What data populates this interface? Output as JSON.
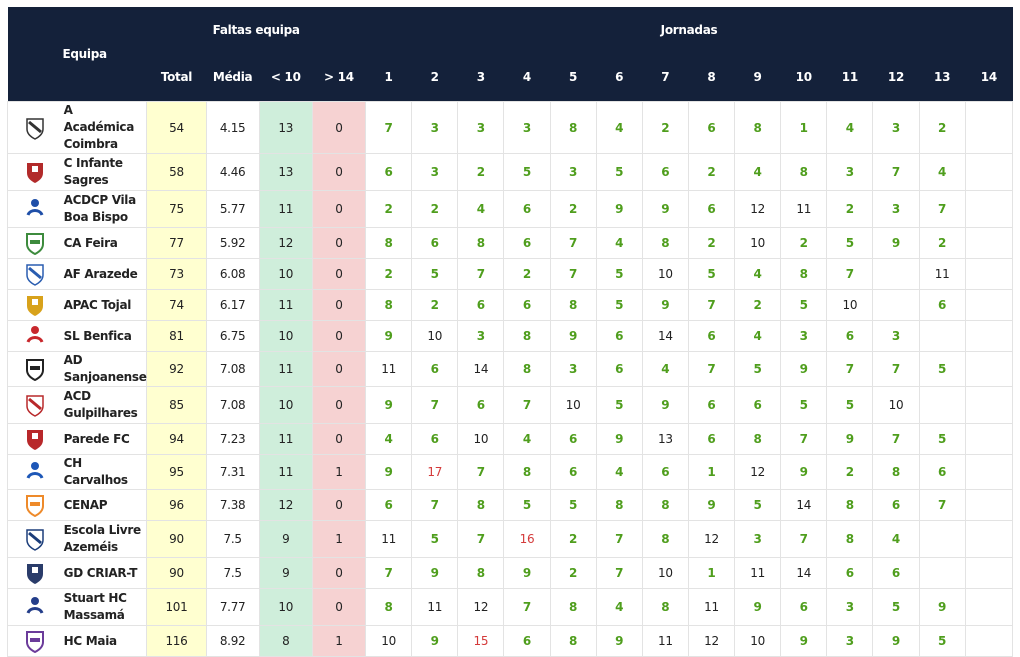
{
  "header": {
    "team_label": "Equipa",
    "faltas_label": "Faltas equipa",
    "jornadas_label": "Jornadas",
    "columns": [
      "Total",
      "Média",
      "< 10",
      "> 14"
    ],
    "rounds": [
      "1",
      "2",
      "3",
      "4",
      "5",
      "6",
      "7",
      "8",
      "9",
      "10",
      "11",
      "12",
      "13",
      "14"
    ]
  },
  "teams": [
    {
      "name": "A Académica Coimbra",
      "crest": "academica-coimbra-crest",
      "total": "54",
      "media": "4.15",
      "lt10": "13",
      "gt14": "0",
      "rounds": [
        "7",
        "3",
        "3",
        "3",
        "8",
        "4",
        "2",
        "6",
        "8",
        "1",
        "4",
        "3",
        "2",
        ""
      ]
    },
    {
      "name": "C Infante Sagres",
      "crest": "infante-sagres-crest",
      "total": "58",
      "media": "4.46",
      "lt10": "13",
      "gt14": "0",
      "rounds": [
        "6",
        "3",
        "2",
        "5",
        "3",
        "5",
        "6",
        "2",
        "4",
        "8",
        "3",
        "7",
        "4",
        ""
      ]
    },
    {
      "name": "ACDCP Vila Boa Bispo",
      "crest": "vila-boa-bispo-crest",
      "total": "75",
      "media": "5.77",
      "lt10": "11",
      "gt14": "0",
      "rounds": [
        "2",
        "2",
        "4",
        "6",
        "2",
        "9",
        "9",
        "6",
        "12",
        "11",
        "2",
        "3",
        "7",
        ""
      ]
    },
    {
      "name": "CA Feira",
      "crest": "ca-feira-crest",
      "total": "77",
      "media": "5.92",
      "lt10": "12",
      "gt14": "0",
      "rounds": [
        "8",
        "6",
        "8",
        "6",
        "7",
        "4",
        "8",
        "2",
        "10",
        "2",
        "5",
        "9",
        "2",
        ""
      ]
    },
    {
      "name": "AF Arazede",
      "crest": "af-arazede-crest",
      "total": "73",
      "media": "6.08",
      "lt10": "10",
      "gt14": "0",
      "rounds": [
        "2",
        "5",
        "7",
        "2",
        "7",
        "5",
        "10",
        "5",
        "4",
        "8",
        "7",
        "",
        "11",
        ""
      ]
    },
    {
      "name": "APAC Tojal",
      "crest": "apac-tojal-crest",
      "total": "74",
      "media": "6.17",
      "lt10": "11",
      "gt14": "0",
      "rounds": [
        "8",
        "2",
        "6",
        "6",
        "8",
        "5",
        "9",
        "7",
        "2",
        "5",
        "10",
        "",
        "6",
        ""
      ]
    },
    {
      "name": "SL Benfica",
      "crest": "sl-benfica-crest",
      "total": "81",
      "media": "6.75",
      "lt10": "10",
      "gt14": "0",
      "rounds": [
        "9",
        "10",
        "3",
        "8",
        "9",
        "6",
        "14",
        "6",
        "4",
        "3",
        "6",
        "3",
        "",
        ""
      ]
    },
    {
      "name": "AD Sanjoanense",
      "crest": "ad-sanjoanense-crest",
      "total": "92",
      "media": "7.08",
      "lt10": "11",
      "gt14": "0",
      "rounds": [
        "11",
        "6",
        "14",
        "8",
        "3",
        "6",
        "4",
        "7",
        "5",
        "9",
        "7",
        "7",
        "5",
        ""
      ]
    },
    {
      "name": "ACD Gulpilhares",
      "crest": "acd-gulpilhares-crest",
      "total": "85",
      "media": "7.08",
      "lt10": "10",
      "gt14": "0",
      "rounds": [
        "9",
        "7",
        "6",
        "7",
        "10",
        "5",
        "9",
        "6",
        "6",
        "5",
        "5",
        "10",
        "",
        ""
      ]
    },
    {
      "name": "Parede FC",
      "crest": "parede-fc-crest",
      "total": "94",
      "media": "7.23",
      "lt10": "11",
      "gt14": "0",
      "rounds": [
        "4",
        "6",
        "10",
        "4",
        "6",
        "9",
        "13",
        "6",
        "8",
        "7",
        "9",
        "7",
        "5",
        ""
      ]
    },
    {
      "name": "CH Carvalhos",
      "crest": "ch-carvalhos-crest",
      "total": "95",
      "media": "7.31",
      "lt10": "11",
      "gt14": "1",
      "rounds": [
        "9",
        "17",
        "7",
        "8",
        "6",
        "4",
        "6",
        "1",
        "12",
        "9",
        "2",
        "8",
        "6",
        ""
      ]
    },
    {
      "name": "CENAP",
      "crest": "cenap-crest",
      "total": "96",
      "media": "7.38",
      "lt10": "12",
      "gt14": "0",
      "rounds": [
        "6",
        "7",
        "8",
        "5",
        "5",
        "8",
        "8",
        "9",
        "5",
        "14",
        "8",
        "6",
        "7",
        ""
      ]
    },
    {
      "name": "Escola Livre Azeméis",
      "crest": "escola-livre-azemeis-crest",
      "total": "90",
      "media": "7.5",
      "lt10": "9",
      "gt14": "1",
      "rounds": [
        "11",
        "5",
        "7",
        "16",
        "2",
        "7",
        "8",
        "12",
        "3",
        "7",
        "8",
        "4",
        "",
        ""
      ]
    },
    {
      "name": "GD CRIAR-T",
      "crest": "gd-criar-t-crest",
      "total": "90",
      "media": "7.5",
      "lt10": "9",
      "gt14": "0",
      "rounds": [
        "7",
        "9",
        "8",
        "9",
        "2",
        "7",
        "10",
        "1",
        "11",
        "14",
        "6",
        "6",
        "",
        ""
      ]
    },
    {
      "name": "Stuart HC Massamá",
      "crest": "stuart-hc-massama-crest",
      "total": "101",
      "media": "7.77",
      "lt10": "10",
      "gt14": "0",
      "rounds": [
        "8",
        "11",
        "12",
        "7",
        "8",
        "4",
        "8",
        "11",
        "9",
        "6",
        "3",
        "5",
        "9",
        ""
      ]
    },
    {
      "name": "HC Maia",
      "crest": "hc-maia-crest",
      "total": "116",
      "media": "8.92",
      "lt10": "8",
      "gt14": "1",
      "rounds": [
        "10",
        "9",
        "15",
        "6",
        "8",
        "9",
        "11",
        "12",
        "10",
        "9",
        "3",
        "9",
        "5",
        ""
      ]
    }
  ],
  "crest_colors": [
    "#333333",
    "#b22a2a",
    "#1f4fa8",
    "#3d8b3d",
    "#2a5db0",
    "#d8a21b",
    "#c8282d",
    "#222222",
    "#b8282a",
    "#b8282a",
    "#1d57b7",
    "#ee8a2a",
    "#1b3d7a",
    "#2a3c6a",
    "#243e8a",
    "#6b3b9a"
  ]
}
